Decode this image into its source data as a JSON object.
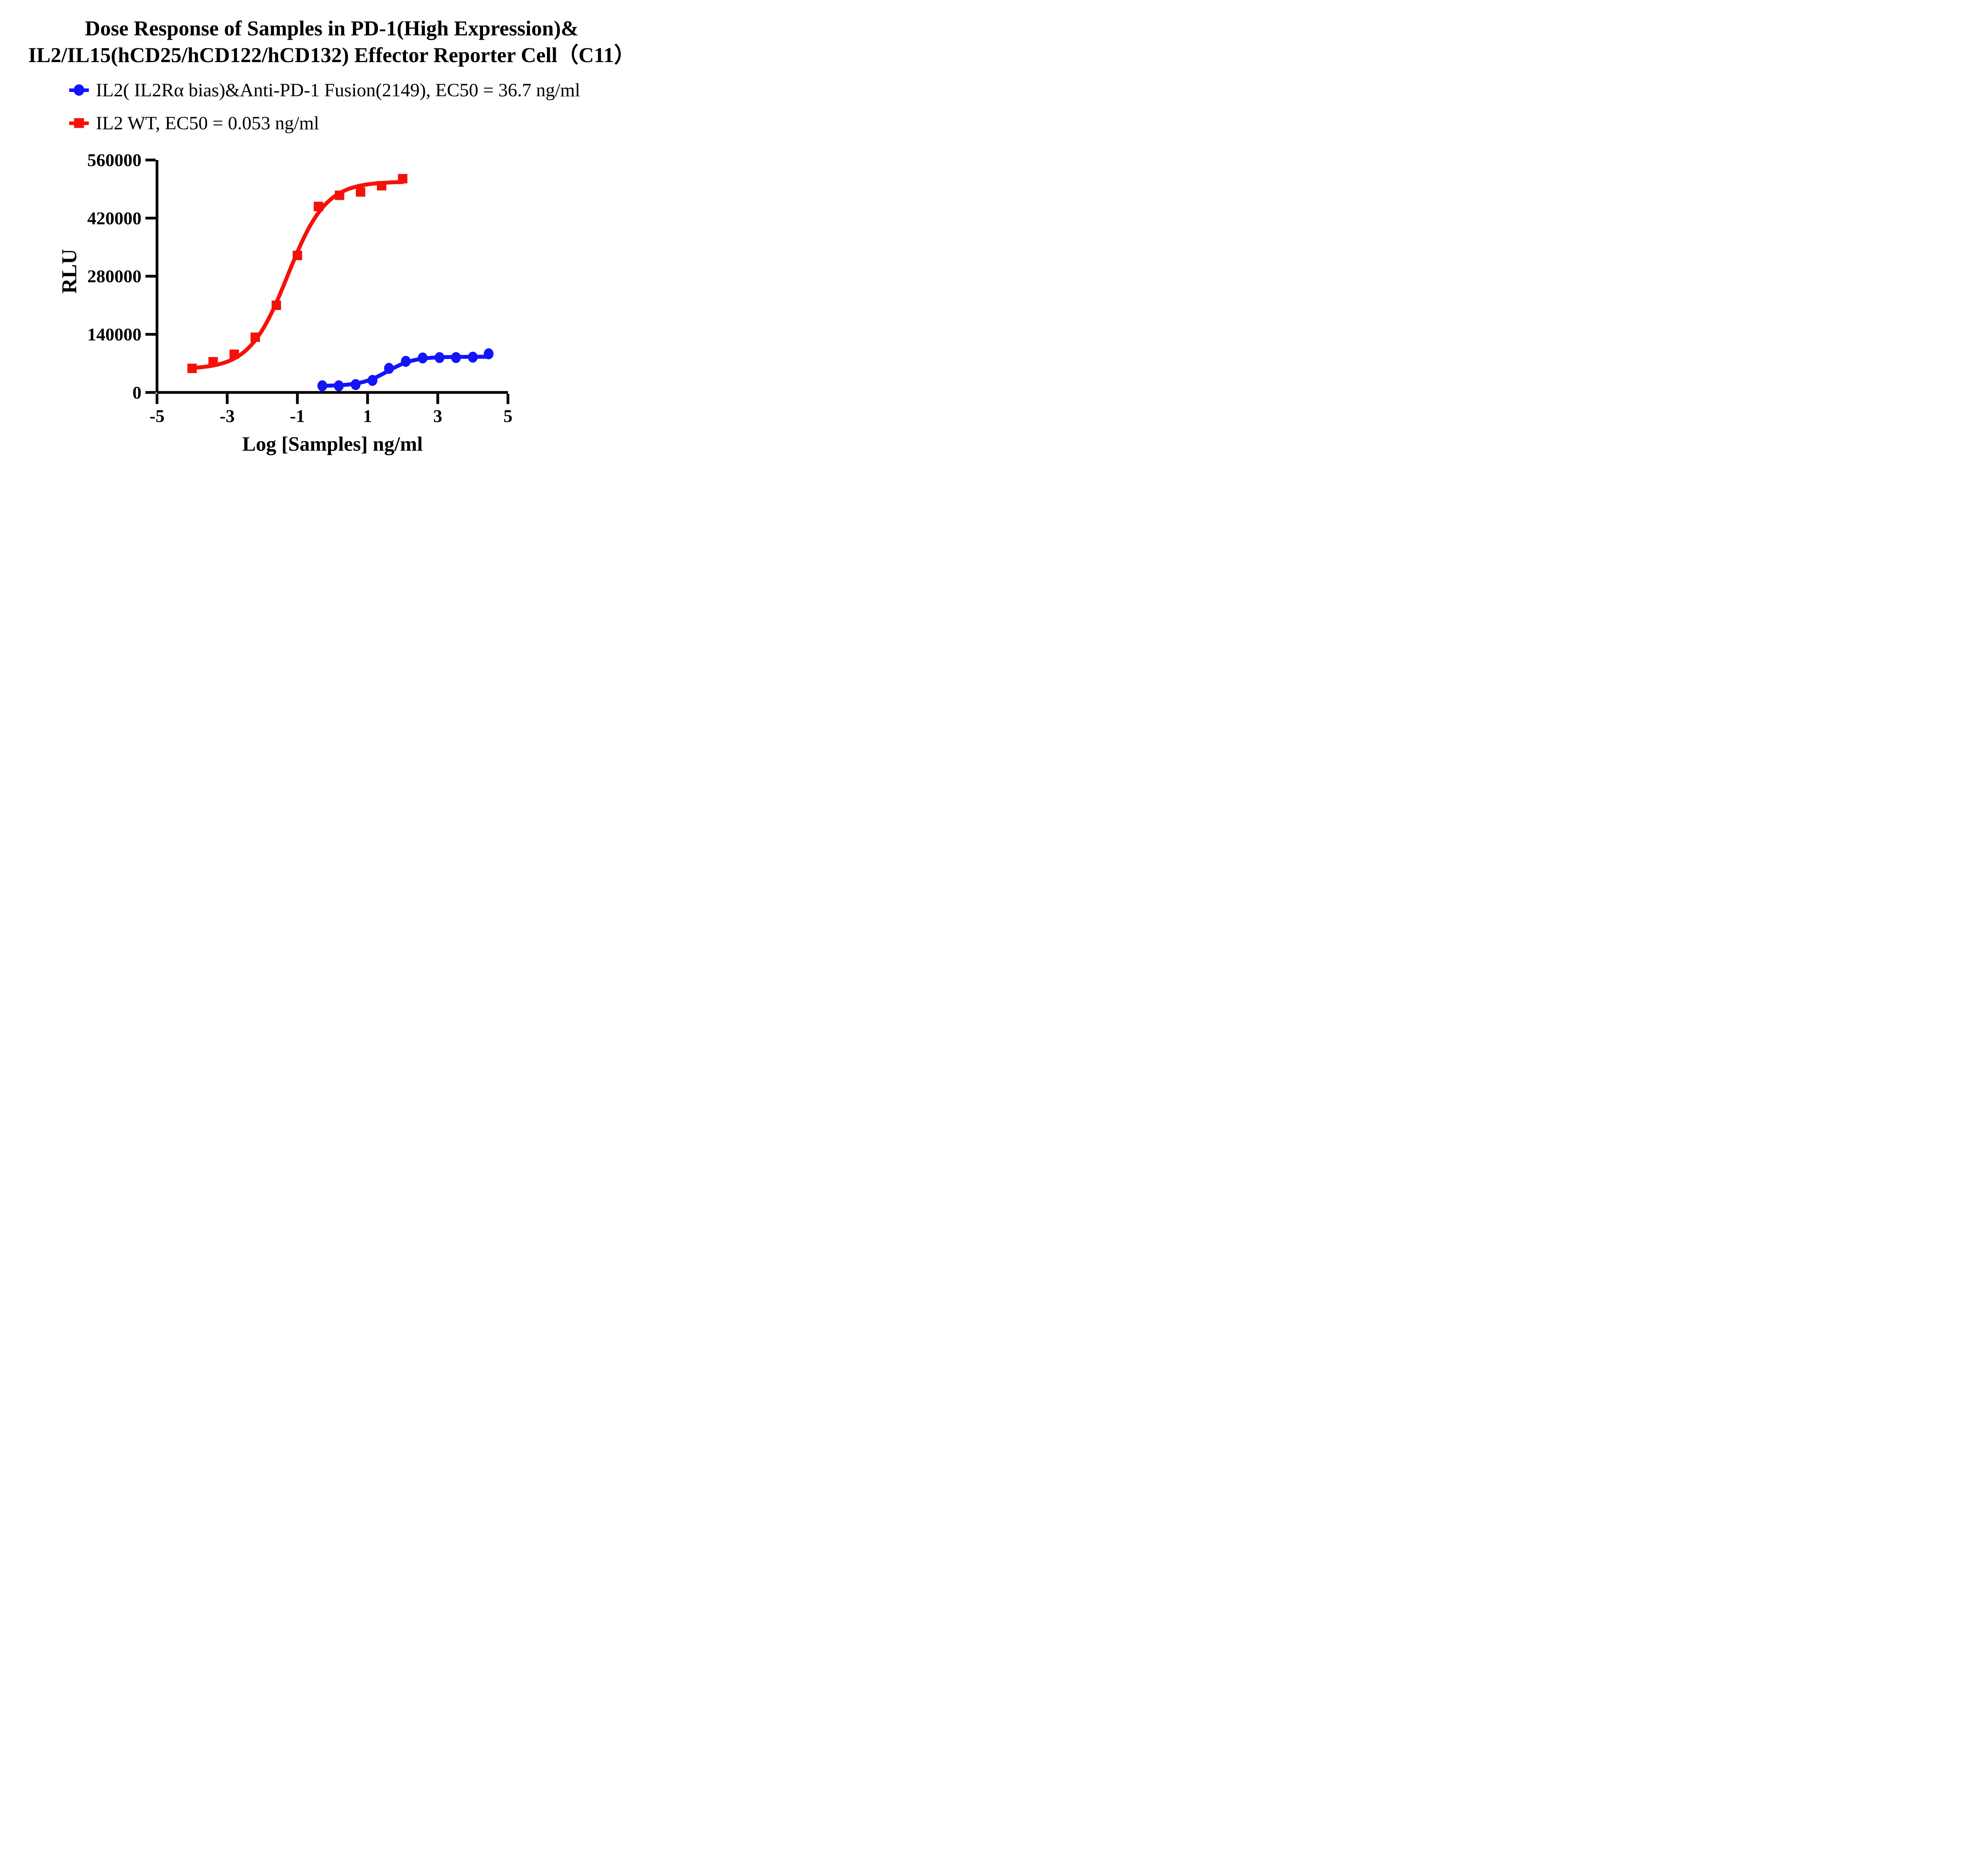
{
  "figure": {
    "title_line1": "Dose Response of Samples in PD-1(High Expression)&",
    "title_line2": "IL2/IL15(hCD25/hCD122/hCD132) Effector Reporter Cell（C11）"
  },
  "legend": {
    "items": [
      {
        "key": "il2-fusion",
        "label": "IL2( IL2Rα bias)&Anti-PD-1 Fusion(2149), EC50 = 36.7 ng/ml",
        "marker": "circle",
        "color": "#1414FA"
      },
      {
        "key": "il2-wt",
        "label": "IL2 WT, EC50 = 0.053 ng/ml",
        "marker": "square",
        "color": "#F51109"
      }
    ]
  },
  "chart_data": {
    "type": "scatter",
    "title": "Dose Response of Samples in PD-1(High Expression)& IL2/IL15(hCD25/hCD122/hCD132) Effector Reporter Cell（C11）",
    "xlabel": "Log [Samples] ng/ml",
    "ylabel": "RLU",
    "xlim": [
      -5,
      5
    ],
    "ylim": [
      0,
      560000
    ],
    "x_ticks": [
      -5,
      -3,
      -1,
      1,
      3,
      5
    ],
    "y_ticks": [
      0,
      140000,
      280000,
      420000,
      560000
    ],
    "grid": false,
    "legend_position": "top-left",
    "axis_color": "#000000",
    "series": [
      {
        "key": "il2-fusion",
        "name": "IL2( IL2Rα bias)&Anti-PD-1 Fusion(2149)",
        "ec50": "36.7 ng/ml",
        "marker": "circle",
        "color": "#1414FA",
        "x": [
          -0.29,
          0.18,
          0.66,
          1.14,
          1.61,
          2.09,
          2.57,
          3.05,
          3.52,
          4.0,
          4.45
        ],
        "y": [
          16000,
          16000,
          19000,
          29000,
          58000,
          75000,
          83000,
          84000,
          84000,
          85000,
          93000
        ],
        "fit": {
          "bottom": 15500,
          "top": 86000,
          "logEC50": 1.565,
          "hill": 1.15
        }
      },
      {
        "key": "il2-wt",
        "name": "IL2 WT",
        "ec50": "0.053 ng/ml",
        "marker": "square",
        "color": "#F51109",
        "x": [
          -4.0,
          -3.4,
          -2.8,
          -2.2,
          -1.6,
          -1.0,
          -0.4,
          0.2,
          0.8,
          1.4,
          2.0
        ],
        "y": [
          58000,
          74000,
          92000,
          133000,
          210000,
          330000,
          448000,
          475000,
          483000,
          498000,
          515000
        ],
        "fit": {
          "bottom": 56000,
          "top": 508000,
          "logEC50": -1.276,
          "hill": 0.8
        }
      }
    ]
  }
}
